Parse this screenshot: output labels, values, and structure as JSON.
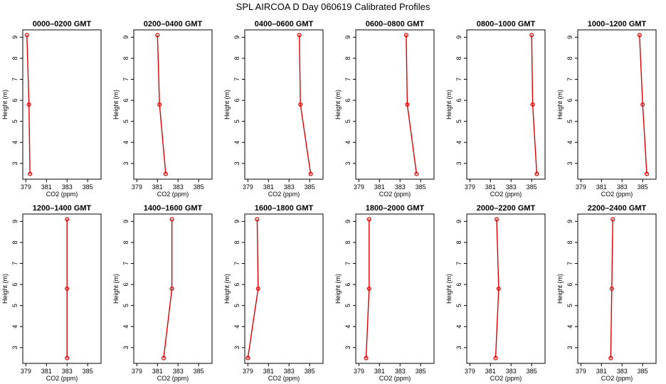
{
  "chart_data": {
    "title": "SPL AIRCOA D  Day 060619  Calibrated Profiles",
    "layout": {
      "rows": 2,
      "cols": 6
    },
    "xlabel": "CO2 (ppm)",
    "ylabel": "Height (m)",
    "xlim": [
      378.7,
      386.3
    ],
    "ylim": [
      2.25,
      9.35
    ],
    "xticks": [
      379,
      381,
      383,
      385
    ],
    "yticks": [
      3,
      4,
      5,
      6,
      7,
      8,
      9
    ],
    "series_color": "#dd0000",
    "panels": [
      {
        "type": "line",
        "title": "0000–0200 GMT",
        "x": [
          379.1,
          379.3,
          379.4
        ],
        "y": [
          9.1,
          5.8,
          2.5
        ],
        "x_ticklabels": [
          "379",
          "381",
          "383",
          "385"
        ],
        "y_ticklabels": [
          "3",
          "4",
          "5",
          "6",
          "7",
          "8",
          "9"
        ]
      },
      {
        "type": "line",
        "title": "0200–0400 GMT",
        "x": [
          381.0,
          381.2,
          381.8
        ],
        "y": [
          9.1,
          5.8,
          2.5
        ],
        "x_ticklabels": [
          "379",
          "381",
          "383",
          "385"
        ],
        "y_ticklabels": [
          "3",
          "4",
          "5",
          "6",
          "7",
          "8",
          "9"
        ]
      },
      {
        "type": "line",
        "title": "0400–0600 GMT",
        "x": [
          384.0,
          384.1,
          385.1
        ],
        "y": [
          9.1,
          5.8,
          2.5
        ],
        "x_ticklabels": [
          "379",
          "381",
          "383",
          "385"
        ],
        "y_ticklabels": [
          "3",
          "4",
          "5",
          "6",
          "7",
          "8",
          "9"
        ]
      },
      {
        "type": "line",
        "title": "0600–0800 GMT",
        "x": [
          383.6,
          383.7,
          384.6
        ],
        "y": [
          9.1,
          5.8,
          2.5
        ],
        "x_ticklabels": [
          "379",
          "381",
          "383",
          "385"
        ],
        "y_ticklabels": [
          "3",
          "4",
          "5",
          "6",
          "7",
          "8",
          "9"
        ]
      },
      {
        "type": "line",
        "title": "0800–1000 GMT",
        "x": [
          385.0,
          385.1,
          385.5
        ],
        "y": [
          9.1,
          5.8,
          2.5
        ],
        "x_ticklabels": [
          "379",
          "381",
          "383",
          "385"
        ],
        "y_ticklabels": [
          "3",
          "4",
          "5",
          "6",
          "7",
          "8",
          "9"
        ]
      },
      {
        "type": "line",
        "title": "1000–1200 GMT",
        "x": [
          384.7,
          385.0,
          385.4
        ],
        "y": [
          9.1,
          5.8,
          2.5
        ],
        "x_ticklabels": [
          "379",
          "381",
          "383",
          "385"
        ],
        "y_ticklabels": [
          "3",
          "4",
          "5",
          "6",
          "7",
          "8",
          "9"
        ]
      },
      {
        "type": "line",
        "title": "1200–1400 GMT",
        "x": [
          383.0,
          383.0,
          383.0
        ],
        "y": [
          9.1,
          5.8,
          2.5
        ],
        "x_ticklabels": [
          "379",
          "381",
          "383",
          "385"
        ],
        "y_ticklabels": [
          "3",
          "4",
          "5",
          "6",
          "7",
          "8",
          "9"
        ]
      },
      {
        "type": "line",
        "title": "1400–1600 GMT",
        "x": [
          382.4,
          382.4,
          381.6
        ],
        "y": [
          9.1,
          5.8,
          2.5
        ],
        "x_ticklabels": [
          "379",
          "381",
          "383",
          "385"
        ],
        "y_ticklabels": [
          "3",
          "4",
          "5",
          "6",
          "7",
          "8",
          "9"
        ]
      },
      {
        "type": "line",
        "title": "1600–1800 GMT",
        "x": [
          379.9,
          380.0,
          379.0
        ],
        "y": [
          9.1,
          5.8,
          2.5
        ],
        "x_ticklabels": [
          "379",
          "381",
          "383",
          "385"
        ],
        "y_ticklabels": [
          "3",
          "4",
          "5",
          "6",
          "7",
          "8",
          "9"
        ]
      },
      {
        "type": "line",
        "title": "1800–2000 GMT",
        "x": [
          380.0,
          380.0,
          379.7
        ],
        "y": [
          9.1,
          5.8,
          2.5
        ],
        "x_ticklabels": [
          "379",
          "381",
          "383",
          "385"
        ],
        "y_ticklabels": [
          "3",
          "4",
          "5",
          "6",
          "7",
          "8",
          "9"
        ]
      },
      {
        "type": "line",
        "title": "2000–2200 GMT",
        "x": [
          381.6,
          381.8,
          381.5
        ],
        "y": [
          9.1,
          5.8,
          2.5
        ],
        "x_ticklabels": [
          "379",
          "381",
          "383",
          "385"
        ],
        "y_ticklabels": [
          "3",
          "4",
          "5",
          "6",
          "7",
          "8",
          "9"
        ]
      },
      {
        "type": "line",
        "title": "2200–2400 GMT",
        "x": [
          382.1,
          382.0,
          381.9
        ],
        "y": [
          9.1,
          5.8,
          2.5
        ],
        "x_ticklabels": [
          "379",
          "381",
          "383",
          "385"
        ],
        "y_ticklabels": [
          "3",
          "4",
          "5",
          "6",
          "7",
          "8",
          "9"
        ]
      }
    ]
  }
}
